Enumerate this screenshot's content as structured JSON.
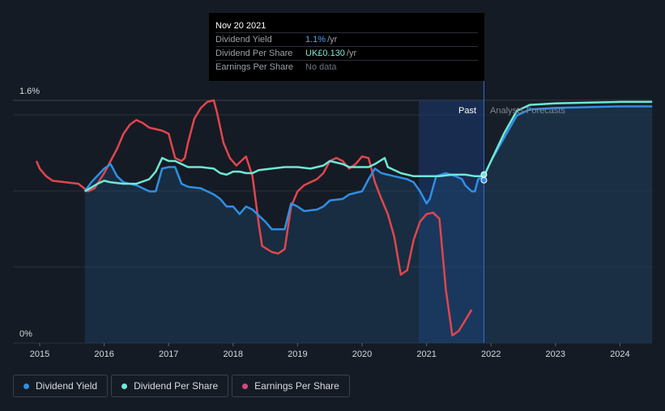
{
  "colors": {
    "background": "#151b24",
    "dividend_yield": "#2f8fe6",
    "dividend_per_share": "#6fe8d6",
    "earnings_per_share": "#e0464f",
    "legend_eps_dot": "#d6487e"
  },
  "tooltip": {
    "date": "Nov 20 2021",
    "rows": [
      {
        "label": "Dividend Yield",
        "value": "1.1%",
        "unit": "/yr"
      },
      {
        "label": "Dividend Per Share",
        "value": "UK£0.130",
        "unit": "/yr"
      },
      {
        "label": "Earnings Per Share",
        "value": "No data",
        "unit": ""
      }
    ]
  },
  "chart_data": {
    "type": "line",
    "y_top_label": "1.6%",
    "y_bottom_label": "0%",
    "ylim": [
      0,
      1.6
    ],
    "xlim": [
      2014.75,
      2024.5
    ],
    "x_ticks": [
      "2015",
      "2016",
      "2017",
      "2018",
      "2019",
      "2020",
      "2021",
      "2022",
      "2023",
      "2024"
    ],
    "region_labels": {
      "past": "Past",
      "forecast": "Analysts Forecasts"
    },
    "past_highlight_range": [
      2020.88,
      2021.89
    ],
    "current_x": 2021.89,
    "series": [
      {
        "name": "Dividend Yield",
        "points": [
          [
            2015.7,
            1.0
          ],
          [
            2015.8,
            1.06
          ],
          [
            2016.0,
            1.15
          ],
          [
            2016.1,
            1.18
          ],
          [
            2016.2,
            1.1
          ],
          [
            2016.3,
            1.06
          ],
          [
            2016.5,
            1.04
          ],
          [
            2016.7,
            1.0
          ],
          [
            2016.8,
            1.0
          ],
          [
            2016.9,
            1.15
          ],
          [
            2017.0,
            1.16
          ],
          [
            2017.1,
            1.16
          ],
          [
            2017.2,
            1.05
          ],
          [
            2017.3,
            1.03
          ],
          [
            2017.5,
            1.02
          ],
          [
            2017.7,
            0.98
          ],
          [
            2017.8,
            0.95
          ],
          [
            2017.9,
            0.9
          ],
          [
            2018.0,
            0.9
          ],
          [
            2018.1,
            0.85
          ],
          [
            2018.2,
            0.9
          ],
          [
            2018.3,
            0.88
          ],
          [
            2018.4,
            0.84
          ],
          [
            2018.5,
            0.8
          ],
          [
            2018.6,
            0.75
          ],
          [
            2018.8,
            0.75
          ],
          [
            2018.9,
            0.92
          ],
          [
            2019.0,
            0.9
          ],
          [
            2019.1,
            0.87
          ],
          [
            2019.3,
            0.88
          ],
          [
            2019.4,
            0.9
          ],
          [
            2019.5,
            0.94
          ],
          [
            2019.7,
            0.95
          ],
          [
            2019.8,
            0.98
          ],
          [
            2020.0,
            1.0
          ],
          [
            2020.1,
            1.08
          ],
          [
            2020.2,
            1.15
          ],
          [
            2020.3,
            1.12
          ],
          [
            2020.5,
            1.1
          ],
          [
            2020.7,
            1.08
          ],
          [
            2020.8,
            1.06
          ],
          [
            2020.9,
            1.0
          ],
          [
            2021.0,
            0.92
          ],
          [
            2021.05,
            0.95
          ],
          [
            2021.15,
            1.1
          ],
          [
            2021.3,
            1.12
          ],
          [
            2021.45,
            1.1
          ],
          [
            2021.55,
            1.08
          ],
          [
            2021.6,
            1.04
          ],
          [
            2021.7,
            1.0
          ],
          [
            2021.75,
            1.0
          ],
          [
            2021.8,
            1.08
          ],
          [
            2021.89,
            1.1
          ],
          [
            2022.0,
            1.2
          ],
          [
            2022.2,
            1.35
          ],
          [
            2022.4,
            1.5
          ],
          [
            2022.6,
            1.54
          ],
          [
            2023.0,
            1.55
          ],
          [
            2024.0,
            1.56
          ],
          [
            2024.5,
            1.56
          ]
        ]
      },
      {
        "name": "Dividend Per Share",
        "points": [
          [
            2015.7,
            1.0
          ],
          [
            2015.9,
            1.05
          ],
          [
            2016.0,
            1.07
          ],
          [
            2016.1,
            1.06
          ],
          [
            2016.3,
            1.05
          ],
          [
            2016.5,
            1.05
          ],
          [
            2016.7,
            1.08
          ],
          [
            2016.8,
            1.13
          ],
          [
            2016.9,
            1.22
          ],
          [
            2017.0,
            1.2
          ],
          [
            2017.1,
            1.2
          ],
          [
            2017.2,
            1.18
          ],
          [
            2017.3,
            1.16
          ],
          [
            2017.4,
            1.16
          ],
          [
            2017.5,
            1.16
          ],
          [
            2017.7,
            1.15
          ],
          [
            2017.8,
            1.12
          ],
          [
            2017.9,
            1.11
          ],
          [
            2018.0,
            1.13
          ],
          [
            2018.1,
            1.13
          ],
          [
            2018.2,
            1.12
          ],
          [
            2018.3,
            1.12
          ],
          [
            2018.4,
            1.14
          ],
          [
            2018.6,
            1.15
          ],
          [
            2018.8,
            1.16
          ],
          [
            2019.0,
            1.16
          ],
          [
            2019.2,
            1.15
          ],
          [
            2019.3,
            1.16
          ],
          [
            2019.4,
            1.17
          ],
          [
            2019.5,
            1.2
          ],
          [
            2019.7,
            1.18
          ],
          [
            2019.8,
            1.16
          ],
          [
            2020.0,
            1.16
          ],
          [
            2020.1,
            1.16
          ],
          [
            2020.2,
            1.18
          ],
          [
            2020.35,
            1.22
          ],
          [
            2020.4,
            1.16
          ],
          [
            2020.6,
            1.12
          ],
          [
            2020.8,
            1.1
          ],
          [
            2021.0,
            1.1
          ],
          [
            2021.2,
            1.1
          ],
          [
            2021.4,
            1.11
          ],
          [
            2021.6,
            1.11
          ],
          [
            2021.75,
            1.1
          ],
          [
            2021.89,
            1.1
          ],
          [
            2022.0,
            1.2
          ],
          [
            2022.2,
            1.38
          ],
          [
            2022.4,
            1.53
          ],
          [
            2022.6,
            1.57
          ],
          [
            2023.0,
            1.58
          ],
          [
            2024.0,
            1.59
          ],
          [
            2024.5,
            1.59
          ]
        ]
      },
      {
        "name": "Earnings Per Share",
        "points": [
          [
            2014.95,
            1.2
          ],
          [
            2015.0,
            1.15
          ],
          [
            2015.1,
            1.1
          ],
          [
            2015.2,
            1.07
          ],
          [
            2015.4,
            1.06
          ],
          [
            2015.6,
            1.05
          ],
          [
            2015.75,
            1.0
          ],
          [
            2015.85,
            1.02
          ],
          [
            2016.0,
            1.12
          ],
          [
            2016.2,
            1.28
          ],
          [
            2016.3,
            1.38
          ],
          [
            2016.4,
            1.44
          ],
          [
            2016.5,
            1.47
          ],
          [
            2016.6,
            1.45
          ],
          [
            2016.7,
            1.42
          ],
          [
            2016.8,
            1.41
          ],
          [
            2016.9,
            1.4
          ],
          [
            2017.0,
            1.38
          ],
          [
            2017.05,
            1.3
          ],
          [
            2017.1,
            1.22
          ],
          [
            2017.2,
            1.2
          ],
          [
            2017.25,
            1.22
          ],
          [
            2017.3,
            1.32
          ],
          [
            2017.4,
            1.48
          ],
          [
            2017.5,
            1.55
          ],
          [
            2017.6,
            1.59
          ],
          [
            2017.7,
            1.6
          ],
          [
            2017.75,
            1.52
          ],
          [
            2017.85,
            1.32
          ],
          [
            2017.95,
            1.22
          ],
          [
            2018.05,
            1.17
          ],
          [
            2018.2,
            1.23
          ],
          [
            2018.3,
            1.1
          ],
          [
            2018.4,
            0.78
          ],
          [
            2018.45,
            0.64
          ],
          [
            2018.6,
            0.6
          ],
          [
            2018.7,
            0.59
          ],
          [
            2018.8,
            0.62
          ],
          [
            2018.9,
            0.9
          ],
          [
            2019.0,
            1.0
          ],
          [
            2019.1,
            1.04
          ],
          [
            2019.2,
            1.06
          ],
          [
            2019.3,
            1.08
          ],
          [
            2019.4,
            1.12
          ],
          [
            2019.5,
            1.2
          ],
          [
            2019.6,
            1.22
          ],
          [
            2019.7,
            1.2
          ],
          [
            2019.8,
            1.15
          ],
          [
            2019.9,
            1.18
          ],
          [
            2020.0,
            1.23
          ],
          [
            2020.1,
            1.22
          ],
          [
            2020.2,
            1.06
          ],
          [
            2020.3,
            0.95
          ],
          [
            2020.4,
            0.85
          ],
          [
            2020.5,
            0.7
          ],
          [
            2020.6,
            0.45
          ],
          [
            2020.7,
            0.48
          ],
          [
            2020.8,
            0.68
          ],
          [
            2020.9,
            0.8
          ],
          [
            2021.0,
            0.85
          ],
          [
            2021.1,
            0.86
          ],
          [
            2021.2,
            0.82
          ],
          [
            2021.3,
            0.35
          ],
          [
            2021.4,
            0.05
          ],
          [
            2021.5,
            0.08
          ],
          [
            2021.6,
            0.15
          ],
          [
            2021.7,
            0.22
          ]
        ]
      }
    ]
  },
  "legend": [
    {
      "label": "Dividend Yield"
    },
    {
      "label": "Dividend Per Share"
    },
    {
      "label": "Earnings Per Share"
    }
  ]
}
